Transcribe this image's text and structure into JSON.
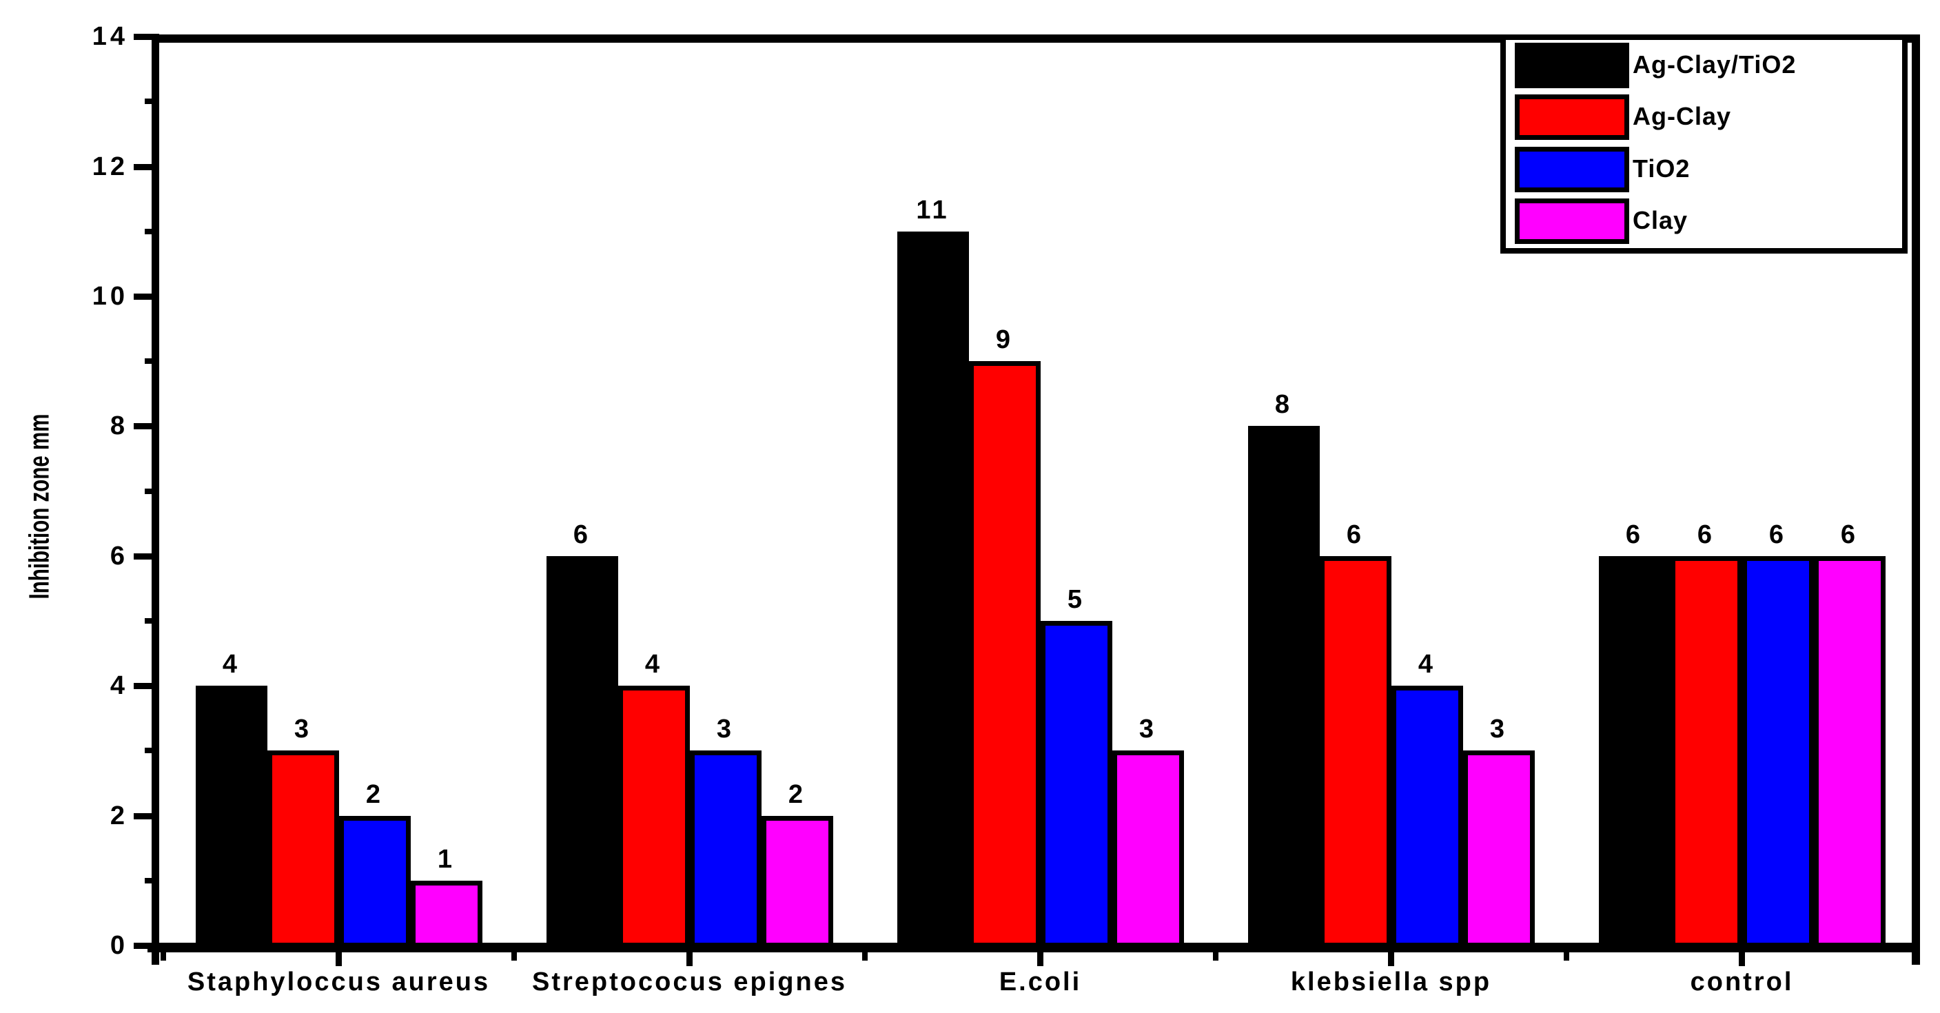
{
  "chart_data": {
    "type": "bar",
    "title": "",
    "ylabel": "Inhibition zone mm",
    "xlabel": "",
    "ylim": [
      0,
      14
    ],
    "y_major_step": 2,
    "y_minor_step": 1,
    "y_tick_labels": [
      "0",
      "2",
      "4",
      "6",
      "8",
      "10",
      "12",
      "14"
    ],
    "categories": [
      "Staphyloccus aureus",
      "Streptococus epignes",
      "E.coli",
      "klebsiella spp",
      "control"
    ],
    "series": [
      {
        "name": "Ag-Clay/TiO2",
        "color": "#000000",
        "values": [
          4,
          6,
          11,
          8,
          6
        ]
      },
      {
        "name": "Ag-Clay",
        "color": "#ff0000",
        "values": [
          3,
          4,
          9,
          6,
          6
        ]
      },
      {
        "name": "TiO2",
        "color": "#0000ff",
        "values": [
          2,
          3,
          5,
          4,
          6
        ]
      },
      {
        "name": "Clay",
        "color": "#ff00ff",
        "values": [
          1,
          2,
          3,
          3,
          6
        ]
      }
    ],
    "bar_value_labels": true,
    "legend_position": "top-right",
    "grid": false,
    "colors": {
      "background": "#ffffff",
      "axis": "#000000",
      "text": "#000000"
    }
  }
}
